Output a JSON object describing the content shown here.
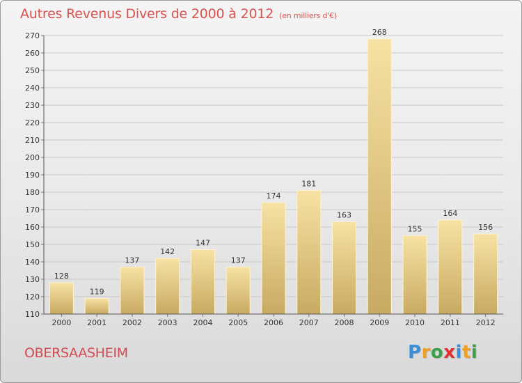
{
  "chart_data": {
    "type": "bar",
    "title": "Autres Revenus Divers de 2000 à 2012",
    "subtitle": "(en milliers d'€)",
    "categories": [
      "2000",
      "2001",
      "2002",
      "2003",
      "2004",
      "2005",
      "2006",
      "2007",
      "2008",
      "2009",
      "2010",
      "2011",
      "2012"
    ],
    "values": [
      128,
      119,
      137,
      142,
      147,
      137,
      174,
      181,
      163,
      268,
      155,
      164,
      156
    ],
    "ylim": [
      110,
      270
    ],
    "yticks": [
      110,
      120,
      130,
      140,
      150,
      160,
      170,
      180,
      190,
      200,
      210,
      220,
      230,
      240,
      250,
      260,
      270
    ],
    "grid": true,
    "bar_color": "#e8c97a",
    "grid_color": "#c8c8c8"
  },
  "footer": {
    "city": "OBERSAASHEIM",
    "logo_letters": [
      "P",
      "r",
      "o",
      "x",
      "i",
      "t",
      "i"
    ],
    "logo_colors": [
      "#3a8fd8",
      "#f0a020",
      "#3aa04a",
      "#e03030",
      "#3a8fd8",
      "#f0a020",
      "#3aa04a"
    ]
  }
}
